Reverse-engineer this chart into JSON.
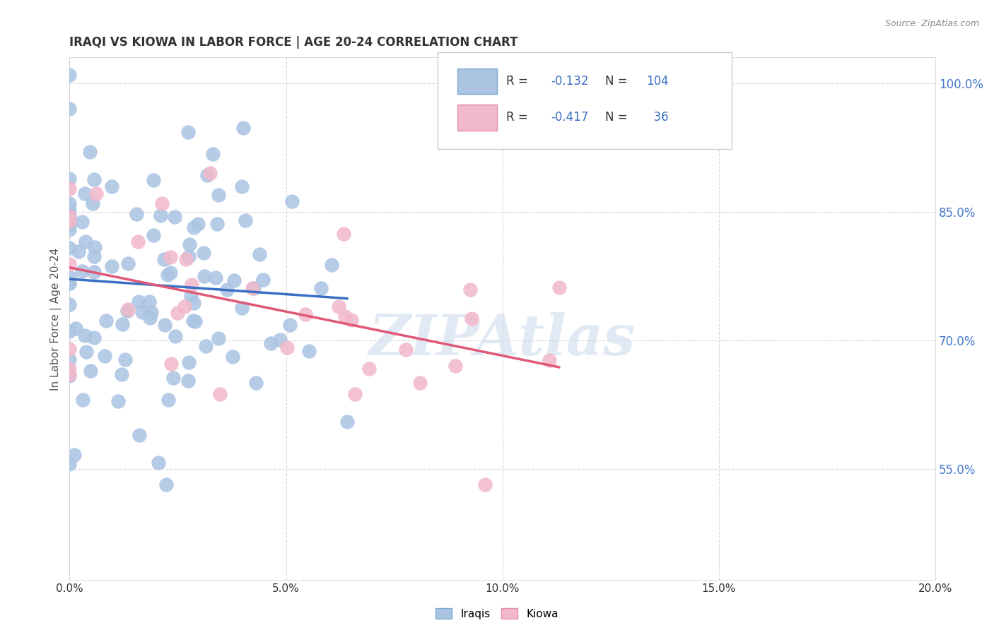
{
  "title": "IRAQI VS KIOWA IN LABOR FORCE | AGE 20-24 CORRELATION CHART",
  "source": "Source: ZipAtlas.com",
  "ylabel": "In Labor Force | Age 20-24",
  "xlim": [
    0.0,
    0.2
  ],
  "ylim": [
    0.42,
    1.03
  ],
  "xtick_vals": [
    0.0,
    0.05,
    0.1,
    0.15,
    0.2
  ],
  "ytick_vals": [
    0.55,
    0.7,
    0.85,
    1.0
  ],
  "iraqis_color": "#aac4e2",
  "kiowa_color": "#f2b8cb",
  "line_iraqis_color": "#3a6fc4",
  "line_kiowa_color": "#e05878",
  "R_iraqis": -0.132,
  "N_iraqis": 104,
  "R_kiowa": -0.417,
  "N_kiowa": 36,
  "background_color": "#ffffff",
  "grid_color": "#d8d8d8",
  "title_color": "#333333",
  "axis_label_color": "#555555",
  "ytick_color": "#4477cc",
  "xtick_color": "#333333",
  "source_color": "#888888",
  "watermark_color": "#c8d8ec",
  "watermark_text": "ZIPAtlas",
  "legend_box_iraqis": "#aac4e2",
  "legend_box_kiowa": "#f2b8cb",
  "legend_box_iraqis_edge": "#7aaad0",
  "legend_box_kiowa_edge": "#e090a8"
}
